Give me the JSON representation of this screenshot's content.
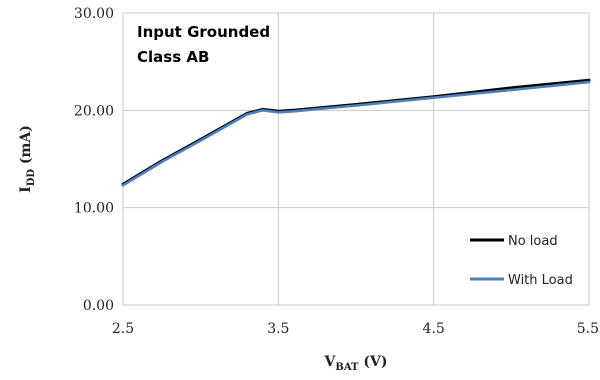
{
  "chart_data": {
    "type": "line",
    "annotation_lines": [
      "Input Grounded",
      "Class AB"
    ],
    "xlabel": {
      "main": "V",
      "sub": "BAT",
      "suffix": " (V)"
    },
    "ylabel": {
      "main": "I",
      "sub": "DD",
      "suffix": " (mA)"
    },
    "xlim": [
      2.5,
      5.5
    ],
    "ylim": [
      0,
      30
    ],
    "x_ticks": [
      "2.5",
      "3.5",
      "4.5",
      "5.5"
    ],
    "x_tick_values": [
      2.5,
      3.5,
      4.5,
      5.5
    ],
    "y_ticks": [
      "0.00",
      "10.00",
      "20.00",
      "30.00"
    ],
    "y_tick_values": [
      0,
      10,
      20,
      30
    ],
    "grid": true,
    "legend_position": "bottom-right",
    "series": [
      {
        "name": "No load",
        "color": "#000000",
        "x": [
          2.5,
          2.75,
          3.0,
          3.2,
          3.3,
          3.4,
          3.5,
          3.6,
          4.0,
          4.5,
          5.0,
          5.5
        ],
        "y": [
          12.4,
          14.8,
          17.0,
          18.8,
          19.7,
          20.1,
          19.9,
          20.0,
          20.6,
          21.4,
          22.3,
          23.1
        ]
      },
      {
        "name": "With Load",
        "color": "#4a7fc0",
        "x": [
          2.5,
          2.75,
          3.0,
          3.2,
          3.3,
          3.4,
          3.5,
          3.6,
          4.0,
          4.5,
          5.0,
          5.5
        ],
        "y": [
          12.3,
          14.7,
          16.9,
          18.7,
          19.6,
          20.0,
          19.8,
          19.9,
          20.5,
          21.3,
          22.1,
          22.9
        ]
      }
    ]
  }
}
